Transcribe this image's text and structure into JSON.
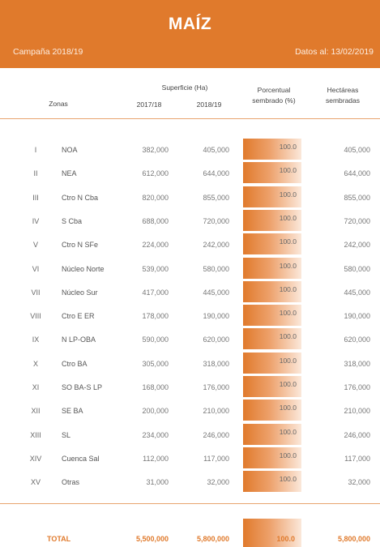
{
  "header": {
    "title": "MAÍZ",
    "campaign": "Campaña 2018/19",
    "date": "Datos al: 13/02/2019"
  },
  "columns": {
    "zonas": "Zonas",
    "superficie": "Superficie (Ha)",
    "year1": "2017/18",
    "year2": "2018/19",
    "porcentual_line1": "Porcentual",
    "porcentual_line2": "sembrado (%)",
    "hectareas_line1": "Hectáreas",
    "hectareas_line2": "sembradas"
  },
  "rows": [
    {
      "roman": "I",
      "zone": "NOA",
      "s1": "382,000",
      "s2": "405,000",
      "pct": "100.0",
      "ha": "405,000"
    },
    {
      "roman": "II",
      "zone": "NEA",
      "s1": "612,000",
      "s2": "644,000",
      "pct": "100.0",
      "ha": "644,000"
    },
    {
      "roman": "III",
      "zone": "Ctro N Cba",
      "s1": "820,000",
      "s2": "855,000",
      "pct": "100.0",
      "ha": "855,000"
    },
    {
      "roman": "IV",
      "zone": "S Cba",
      "s1": "688,000",
      "s2": "720,000",
      "pct": "100.0",
      "ha": "720,000"
    },
    {
      "roman": "V",
      "zone": "Ctro N SFe",
      "s1": "224,000",
      "s2": "242,000",
      "pct": "100.0",
      "ha": "242,000"
    },
    {
      "roman": "VI",
      "zone": "Núcleo Norte",
      "s1": "539,000",
      "s2": "580,000",
      "pct": "100.0",
      "ha": "580,000"
    },
    {
      "roman": "VII",
      "zone": "Núcleo Sur",
      "s1": "417,000",
      "s2": "445,000",
      "pct": "100.0",
      "ha": "445,000"
    },
    {
      "roman": "VIII",
      "zone": "Ctro E ER",
      "s1": "178,000",
      "s2": "190,000",
      "pct": "100.0",
      "ha": "190,000"
    },
    {
      "roman": "IX",
      "zone": "N LP-OBA",
      "s1": "590,000",
      "s2": "620,000",
      "pct": "100.0",
      "ha": "620,000"
    },
    {
      "roman": "X",
      "zone": "Ctro BA",
      "s1": "305,000",
      "s2": "318,000",
      "pct": "100.0",
      "ha": "318,000"
    },
    {
      "roman": "XI",
      "zone": "SO BA-S LP",
      "s1": "168,000",
      "s2": "176,000",
      "pct": "100.0",
      "ha": "176,000"
    },
    {
      "roman": "XII",
      "zone": "SE BA",
      "s1": "200,000",
      "s2": "210,000",
      "pct": "100.0",
      "ha": "210,000"
    },
    {
      "roman": "XIII",
      "zone": "SL",
      "s1": "234,000",
      "s2": "246,000",
      "pct": "100.0",
      "ha": "246,000"
    },
    {
      "roman": "XIV",
      "zone": "Cuenca Sal",
      "s1": "112,000",
      "s2": "117,000",
      "pct": "100.0",
      "ha": "117,000"
    },
    {
      "roman": "XV",
      "zone": "Otras",
      "s1": "31,000",
      "s2": "32,000",
      "pct": "100.0",
      "ha": "32,000"
    }
  ],
  "total": {
    "label": "TOTAL",
    "s1": "5,500,000",
    "s2": "5,800,000",
    "pct": "100.0",
    "ha": "5,800,000"
  },
  "colors": {
    "accent": "#e07a2c"
  }
}
